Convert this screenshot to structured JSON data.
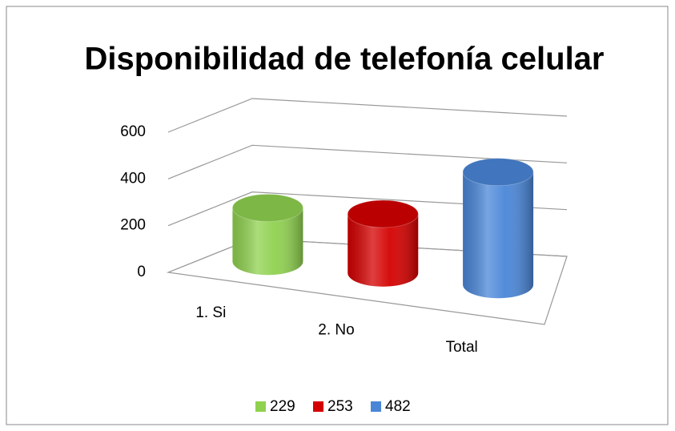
{
  "chart_data": {
    "type": "bar3d",
    "title": "Disponibilidad de telefonía celular",
    "categories": [
      "1. Si",
      "2. No",
      "Total"
    ],
    "series": [
      {
        "name": "229",
        "color": "#8fd14f",
        "values": [
          229,
          null,
          null
        ]
      },
      {
        "name": "253",
        "color": "#d40000",
        "values": [
          null,
          253,
          null
        ]
      },
      {
        "name": "482",
        "color": "#4a86d8",
        "values": [
          null,
          null,
          482
        ]
      }
    ],
    "ylim": [
      0,
      600
    ],
    "yticks": [
      0,
      200,
      400,
      600
    ],
    "grid": true,
    "legend": "bottom"
  }
}
